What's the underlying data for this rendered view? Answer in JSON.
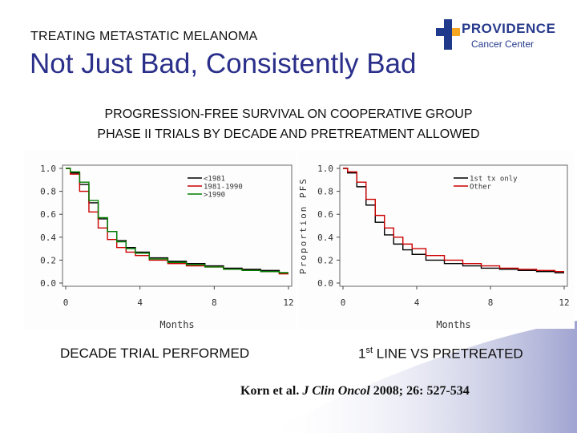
{
  "header": {
    "kicker": "TREATING METASTATIC MELANOMA",
    "title": "Not Just Bad, Consistently Bad"
  },
  "logo": {
    "word1": "PROVIDENCE",
    "word2": "Cancer Center",
    "cross_color": "#1f3a8a",
    "accent_color": "#f5a623"
  },
  "subtitle": {
    "line1": "PROGRESSION-FREE SURVIVAL ON COOPERATIVE GROUP",
    "line2": "PHASE II TRIALS BY DECADE AND PRETREATMENT ALLOWED"
  },
  "chart_data": [
    {
      "type": "line",
      "panel": "decade",
      "xlabel": "Months",
      "ylabel": "",
      "xlim": [
        0,
        12
      ],
      "ylim": [
        0,
        1
      ],
      "xticks": [
        "0",
        "4",
        "8",
        "12"
      ],
      "yticks": [
        "0.0",
        "0.2",
        "0.4",
        "0.6",
        "0.8",
        "1.0"
      ],
      "legend_position": "top-right",
      "series": [
        {
          "name": "<1981",
          "color": "#000000",
          "x": [
            0,
            0.5,
            1,
            1.5,
            2,
            2.5,
            3,
            3.5,
            4,
            5,
            6,
            7,
            8,
            9,
            10,
            11,
            12
          ],
          "y": [
            1.0,
            0.96,
            0.86,
            0.7,
            0.56,
            0.45,
            0.37,
            0.31,
            0.27,
            0.22,
            0.19,
            0.17,
            0.15,
            0.13,
            0.12,
            0.11,
            0.09
          ]
        },
        {
          "name": "1981-1990",
          "color": "#cc0000",
          "x": [
            0,
            0.5,
            1,
            1.5,
            2,
            2.5,
            3,
            3.5,
            4,
            5,
            6,
            7,
            8,
            9,
            10,
            11,
            12
          ],
          "y": [
            1.0,
            0.95,
            0.8,
            0.62,
            0.48,
            0.38,
            0.31,
            0.27,
            0.24,
            0.2,
            0.17,
            0.15,
            0.14,
            0.12,
            0.11,
            0.1,
            0.08
          ]
        },
        {
          "name": ">1990",
          "color": "#008000",
          "x": [
            0,
            0.5,
            1,
            1.5,
            2,
            2.5,
            3,
            3.5,
            4,
            5,
            6,
            7,
            8,
            9,
            10,
            11,
            12
          ],
          "y": [
            1.0,
            0.97,
            0.88,
            0.72,
            0.57,
            0.45,
            0.36,
            0.3,
            0.26,
            0.21,
            0.18,
            0.16,
            0.14,
            0.12,
            0.11,
            0.1,
            0.09
          ]
        }
      ],
      "caption": "DECADE TRIAL PERFORMED"
    },
    {
      "type": "line",
      "panel": "pretreatment",
      "xlabel": "Months",
      "ylabel": "Proportion PFS",
      "xlim": [
        0,
        12
      ],
      "ylim": [
        0,
        1
      ],
      "xticks": [
        "0",
        "4",
        "8",
        "12"
      ],
      "yticks": [
        "0.0",
        "0.2",
        "0.4",
        "0.6",
        "0.8",
        "1.0"
      ],
      "legend_position": "top-right",
      "series": [
        {
          "name": "1st tx only",
          "color": "#000000",
          "x": [
            0,
            0.5,
            1,
            1.5,
            2,
            2.5,
            3,
            3.5,
            4,
            5,
            6,
            7,
            8,
            9,
            10,
            11,
            12
          ],
          "y": [
            1.0,
            0.96,
            0.84,
            0.68,
            0.53,
            0.42,
            0.34,
            0.29,
            0.25,
            0.2,
            0.17,
            0.15,
            0.13,
            0.12,
            0.11,
            0.1,
            0.09
          ]
        },
        {
          "name": "Other",
          "color": "#cc0000",
          "x": [
            0,
            0.5,
            1,
            1.5,
            2,
            2.5,
            3,
            3.5,
            4,
            5,
            6,
            7,
            8,
            9,
            10,
            11,
            12
          ],
          "y": [
            1.0,
            0.97,
            0.88,
            0.73,
            0.59,
            0.48,
            0.4,
            0.34,
            0.3,
            0.24,
            0.2,
            0.17,
            0.15,
            0.13,
            0.12,
            0.11,
            0.1
          ]
        }
      ],
      "caption_main": "1",
      "caption_sup": "st",
      "caption_rest": " LINE VS PRETREATED"
    }
  ],
  "citation": {
    "authors": "Korn et al. ",
    "journal": "J Clin Oncol",
    "details": " 2008; 26: 527-534"
  }
}
